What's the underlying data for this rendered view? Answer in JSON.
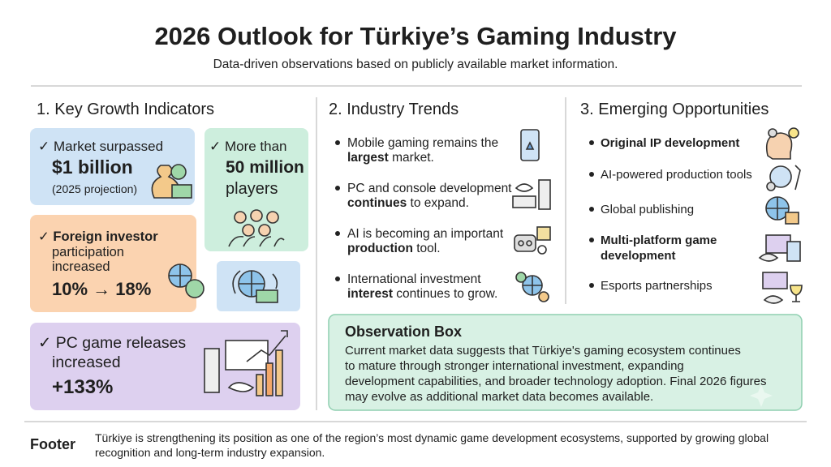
{
  "header": {
    "title": "2026 Outlook for Türkiye’s Gaming Industry",
    "subtitle": "Data-driven observations based on publicly available market information."
  },
  "indicators": {
    "title": "1. Key Growth Indicators",
    "cards": [
      {
        "lines": [
          "✓ Market surpassed",
          "$1 billion",
          "(2025 projection)"
        ]
      },
      {
        "lines": [
          "✓ More than",
          "50 million",
          "players"
        ]
      },
      {
        "lines": [
          "✓ Foreign investor",
          "participation",
          "increased",
          "10% → 18%"
        ]
      },
      {
        "lines": [
          "✓ PC game releases",
          "increased",
          "+133%"
        ]
      }
    ]
  },
  "trends": {
    "title": "2. Industry Trends",
    "items": [
      {
        "lines": [
          [
            "Mobile gaming remains the"
          ],
          [
            "largest",
            " market."
          ]
        ]
      },
      {
        "lines": [
          [
            "PC and console development"
          ],
          [
            "continues",
            " to expand."
          ]
        ]
      },
      {
        "lines": [
          [
            "AI is becoming an important"
          ],
          [
            "production",
            " tool."
          ]
        ]
      },
      {
        "lines": [
          [
            "International investment"
          ],
          [
            "interest",
            " continues to grow."
          ]
        ]
      }
    ]
  },
  "opportunities": {
    "title": "3. Emerging Opportunities",
    "items": [
      {
        "lines": [
          "Original IP development"
        ]
      },
      {
        "lines": [
          "AI-powered production tools"
        ]
      },
      {
        "lines": [
          "Global publishing"
        ]
      },
      {
        "lines": [
          "Multi-platform game",
          "development"
        ]
      },
      {
        "lines": [
          "Esports partnerships"
        ]
      }
    ]
  },
  "observation": {
    "title": "Observation Box",
    "lines": [
      "Current market data suggests that Türkiye's gaming ecosystem continues",
      "to mature through stronger international investment, expanding",
      "development capabilities, and broader technology adoption. Final 2026 figures",
      "may evolve as additional market data becomes available."
    ]
  },
  "footer": {
    "label": "Footer",
    "lines": [
      "Türkiye is strengthening its position as one of the region’s most dynamic game development ecosystems, supported by growing global",
      "recognition and long-term industry expansion."
    ]
  }
}
